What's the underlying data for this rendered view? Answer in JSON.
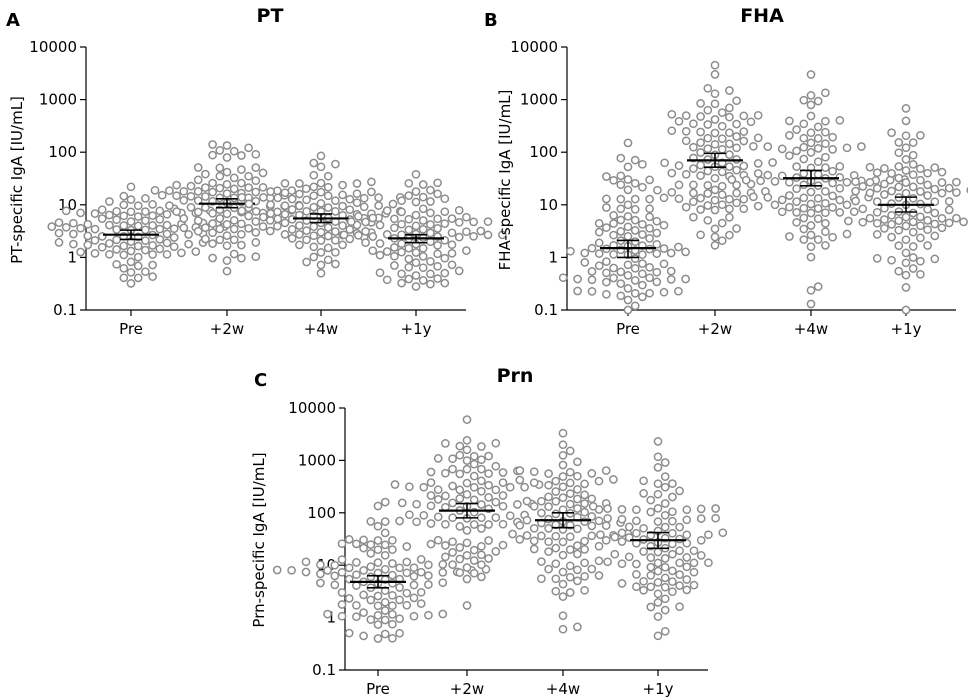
{
  "chart_data": [
    {
      "type": "scatter",
      "panel": "A",
      "title": "PT",
      "ylabel": "PT-specific IgA [IU/mL]",
      "yscale": "log",
      "ylim": [
        0.1,
        10000
      ],
      "yticks": [
        "0.1",
        "1",
        "10",
        "100",
        "1000",
        "10000"
      ],
      "categories": [
        "Pre",
        "+2w",
        "+4w",
        "+1y"
      ],
      "series": [
        {
          "name": "Pre",
          "gm": 2.7,
          "ci": [
            2.2,
            3.3
          ],
          "min": 0.32,
          "max": 22,
          "n": 105
        },
        {
          "name": "+2w",
          "gm": 10.5,
          "ci": [
            8.8,
            13.0
          ],
          "min": 0.55,
          "max": 140,
          "n": 110
        },
        {
          "name": "+4w",
          "gm": 5.5,
          "ci": [
            4.6,
            6.7
          ],
          "min": 0.5,
          "max": 85,
          "n": 108
        },
        {
          "name": "+1y",
          "gm": 2.3,
          "ci": [
            1.9,
            2.7
          ],
          "min": 0.28,
          "max": 38,
          "n": 105
        }
      ]
    },
    {
      "type": "scatter",
      "panel": "B",
      "title": "FHA",
      "ylabel": "FHA-specific IgA [IU/mL]",
      "yscale": "log",
      "ylim": [
        0.1,
        10000
      ],
      "yticks": [
        "0.1",
        "1",
        "10",
        "100",
        "1000",
        "10000"
      ],
      "categories": [
        "Pre",
        "+2w",
        "+4w",
        "+1y"
      ],
      "series": [
        {
          "name": "Pre",
          "gm": 1.5,
          "ci": [
            1.0,
            2.1
          ],
          "min": 0.1,
          "max": 150,
          "n": 110
        },
        {
          "name": "+2w",
          "gm": 70,
          "ci": [
            52,
            95
          ],
          "min": 1.7,
          "max": 4500,
          "n": 110
        },
        {
          "name": "+4w",
          "gm": 32,
          "ci": [
            23,
            45
          ],
          "min": 0.13,
          "max": 3000,
          "n": 110
        },
        {
          "name": "+1y",
          "gm": 10,
          "ci": [
            7.3,
            14
          ],
          "min": 0.1,
          "max": 680,
          "n": 110
        }
      ]
    },
    {
      "type": "scatter",
      "panel": "C",
      "title": "Prn",
      "ylabel": "Prn-specific IgA [IU/mL]",
      "yscale": "log",
      "ylim": [
        0.1,
        10000
      ],
      "yticks": [
        "0.1",
        "1",
        "10",
        "100",
        "1000",
        "10000"
      ],
      "categories": [
        "Pre",
        "+2w",
        "+4w",
        "+1y"
      ],
      "series": [
        {
          "name": "Pre",
          "gm": 4.8,
          "ci": [
            3.7,
            6.3
          ],
          "min": 0.4,
          "max": 160,
          "n": 110
        },
        {
          "name": "+2w",
          "gm": 110,
          "ci": [
            80,
            150
          ],
          "min": 1.7,
          "max": 6000,
          "n": 110
        },
        {
          "name": "+4w",
          "gm": 72,
          "ci": [
            52,
            100
          ],
          "min": 0.6,
          "max": 3300,
          "n": 110
        },
        {
          "name": "+1y",
          "gm": 30,
          "ci": [
            21,
            42
          ],
          "min": 0.45,
          "max": 2300,
          "n": 110
        }
      ]
    }
  ]
}
